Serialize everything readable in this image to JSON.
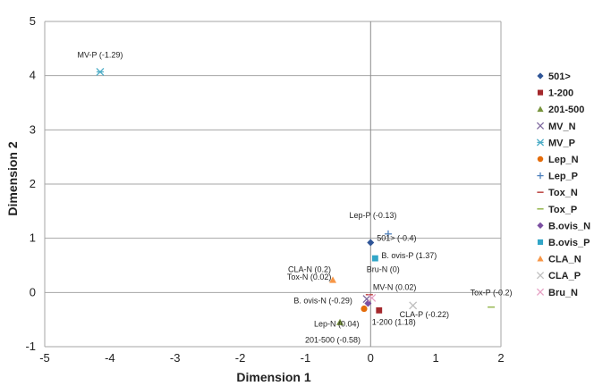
{
  "chart_data": {
    "type": "scatter",
    "title": "",
    "xlabel": "Dimension 1",
    "ylabel": "Dimension 2",
    "xlim": [
      -5,
      2
    ],
    "ylim": [
      -1,
      5
    ],
    "x_ticks": [
      "-5",
      "-4",
      "-3",
      "-2",
      "-1",
      "0",
      "1",
      "2"
    ],
    "y_ticks": [
      "-1",
      "0",
      "1",
      "2",
      "3",
      "4",
      "5"
    ],
    "grid": "horizontal",
    "legend_position": "right",
    "series": [
      {
        "name": "501>",
        "marker": "diamond",
        "color": "#2f5597",
        "x": 0.0,
        "y": 0.92,
        "label": "501> (-0.4)"
      },
      {
        "name": "1-200",
        "marker": "square",
        "color": "#a4282c",
        "x": 0.13,
        "y": -0.33,
        "label": "1-200 (1.18)"
      },
      {
        "name": "201-500",
        "marker": "triangle",
        "color": "#77933c",
        "x": -0.47,
        "y": -0.55,
        "label": "201-500 (-0.58)"
      },
      {
        "name": "MV_N",
        "marker": "x",
        "color": "#7f6a9f",
        "x": -0.06,
        "y": -0.12,
        "label": "MV-N (0.02)"
      },
      {
        "name": "MV_P",
        "marker": "star",
        "color": "#4bacc6",
        "x": -4.15,
        "y": 4.07,
        "label": "MV-P (-1.29)"
      },
      {
        "name": "Lep_N",
        "marker": "circle",
        "color": "#e46c0a",
        "x": -0.1,
        "y": -0.3,
        "label": "Lep-N (0.04)"
      },
      {
        "name": "Lep_P",
        "marker": "plus",
        "color": "#4f81bd",
        "x": 0.27,
        "y": 1.08,
        "label": "Lep-P (-0.13)"
      },
      {
        "name": "Tox_N",
        "marker": "dash",
        "color": "#c0504d",
        "x": -0.02,
        "y": -0.04,
        "label": "Tox-N (0.02)"
      },
      {
        "name": "Tox_P",
        "marker": "dash",
        "color": "#9bbb59",
        "x": 1.85,
        "y": -0.27,
        "label": "Tox-P (-0.2)"
      },
      {
        "name": "B.ovis_N",
        "marker": "diamond",
        "color": "#7b4fa1",
        "x": -0.04,
        "y": -0.2,
        "label": "B. ovis-N (-0.29)"
      },
      {
        "name": "B.ovis_P",
        "marker": "square",
        "color": "#31a5c7",
        "x": 0.07,
        "y": 0.63,
        "label": "B. ovis-P (1.37)"
      },
      {
        "name": "CLA_N",
        "marker": "triangle",
        "color": "#f79646",
        "x": -0.58,
        "y": 0.23,
        "label": "CLA-N (0.2)"
      },
      {
        "name": "CLA_P",
        "marker": "x",
        "color": "#bfbfbf",
        "x": 0.65,
        "y": -0.24,
        "label": "CLA-P (-0.22)"
      },
      {
        "name": "Bru_N",
        "marker": "x",
        "color": "#e6a0c4",
        "x": 0.02,
        "y": -0.1,
        "label": "Bru-N (0)"
      }
    ]
  }
}
